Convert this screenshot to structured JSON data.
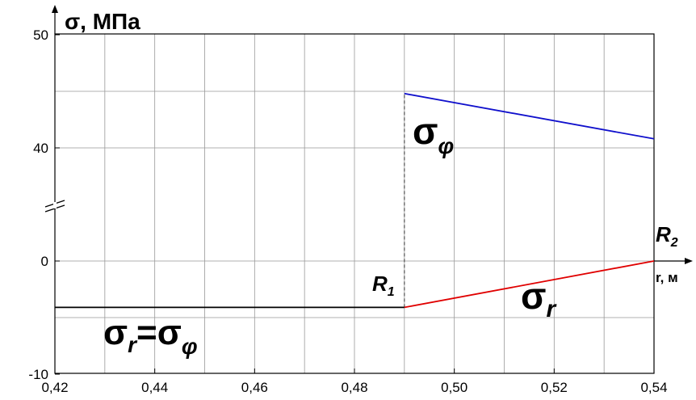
{
  "chart_data": {
    "type": "line",
    "ylabel": "σ, МПа",
    "xlabel": "r, м",
    "xlim": [
      0.42,
      0.54
    ],
    "x_ticks": [
      "0,42",
      "0,44",
      "0,46",
      "0,48",
      "0,50",
      "0,52",
      "0,54"
    ],
    "x_tick_values": [
      0.42,
      0.44,
      0.46,
      0.48,
      0.5,
      0.52,
      0.54
    ],
    "y_ticks": [
      "50",
      "40",
      "0",
      "-10"
    ],
    "y_tick_values": [
      50,
      40,
      0,
      -10
    ],
    "y_axis_break": {
      "lower_max": 5,
      "upper_min": 35
    },
    "grid": true,
    "series": [
      {
        "name": "σr=σφ",
        "color": "#000000",
        "x": [
          0.42,
          0.49
        ],
        "y": [
          -4.1,
          -4.1
        ]
      },
      {
        "name": "σr",
        "color": "#e00000",
        "x": [
          0.49,
          0.54
        ],
        "y": [
          -4.1,
          0
        ]
      },
      {
        "name": "σφ",
        "color": "#1010cc",
        "x": [
          0.49,
          0.54
        ],
        "y": [
          44.8,
          40.8
        ]
      }
    ],
    "dashed_line": {
      "x": 0.49,
      "y": [
        -4.1,
        44.8
      ],
      "color": "#555555"
    },
    "annotations": {
      "r1_base": "R",
      "r1_sub": "1",
      "r2_base": "R",
      "r2_sub": "2",
      "sigma_phi_base": "σ",
      "sigma_phi_sub": "φ",
      "sigma_r_base": "σ",
      "sigma_r_sub": "r",
      "eq_left_base": "σ",
      "eq_left_sub": "r",
      "eq_sign": "=",
      "eq_right_base": "σ",
      "eq_right_sub": "φ"
    }
  }
}
